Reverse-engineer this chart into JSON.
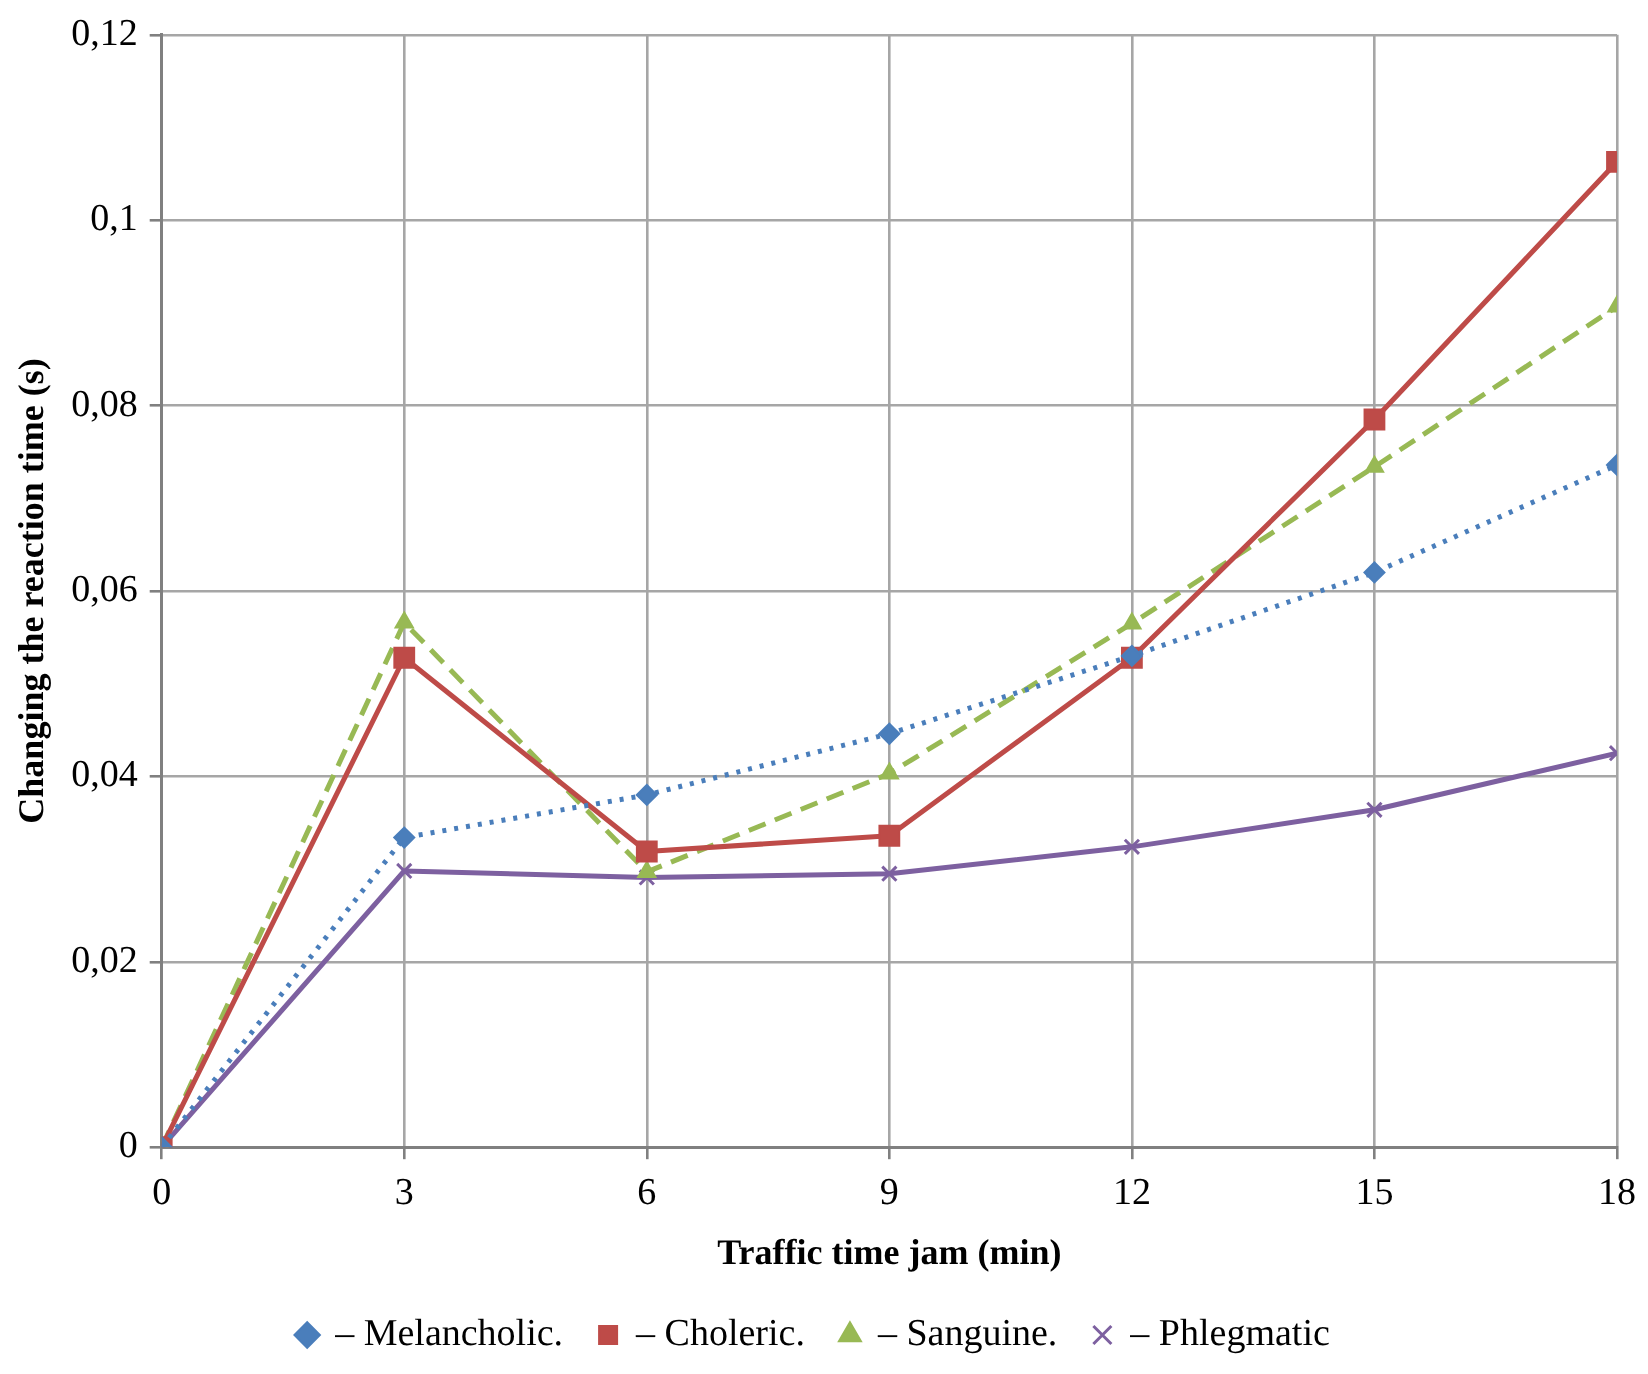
{
  "chart_data": {
    "type": "line",
    "xlabel": "Traffic time jam (min)",
    "ylabel": "Changing the reaction time (s)",
    "x": [
      0,
      3,
      6,
      9,
      12,
      15,
      18
    ],
    "series": [
      {
        "name": "– Melancholic.",
        "color": "#4a7ebb",
        "marker": "diamond",
        "line_style": "dotted",
        "values": [
          0,
          0.0334,
          0.038,
          0.0446,
          0.053,
          0.062,
          0.0736
        ]
      },
      {
        "name": "– Choleric.",
        "color": "#be4b48",
        "marker": "square",
        "line_style": "solid",
        "values": [
          0,
          0.0528,
          0.0319,
          0.0336,
          0.0528,
          0.0785,
          0.1063
        ]
      },
      {
        "name": "– Sanguine.",
        "color": "#98b954",
        "marker": "triangle",
        "line_style": "dashed",
        "values": [
          0,
          0.0566,
          0.0297,
          0.0403,
          0.0565,
          0.0734,
          0.0907
        ]
      },
      {
        "name": "– Phlegmatic",
        "color": "#7d60a0",
        "marker": "cross",
        "line_style": "solid",
        "values": [
          0,
          0.0298,
          0.0291,
          0.0295,
          0.0324,
          0.0364,
          0.0425
        ]
      }
    ],
    "xlim": [
      0,
      18
    ],
    "xticks": [
      0,
      3,
      6,
      9,
      12,
      15,
      18
    ],
    "ylim": [
      0,
      0.12
    ],
    "yticks": [
      0,
      {
        "value": 0.02,
        "label": "0,02"
      },
      {
        "value": 0.04,
        "label": "0,04"
      },
      {
        "value": 0.06,
        "label": "0,06"
      },
      {
        "value": 0.08,
        "label": "0,08"
      },
      {
        "value": 0.1,
        "label": "0,1"
      },
      {
        "value": 0.12,
        "label": "0,12"
      }
    ],
    "grid": true,
    "legend": "bottom"
  }
}
